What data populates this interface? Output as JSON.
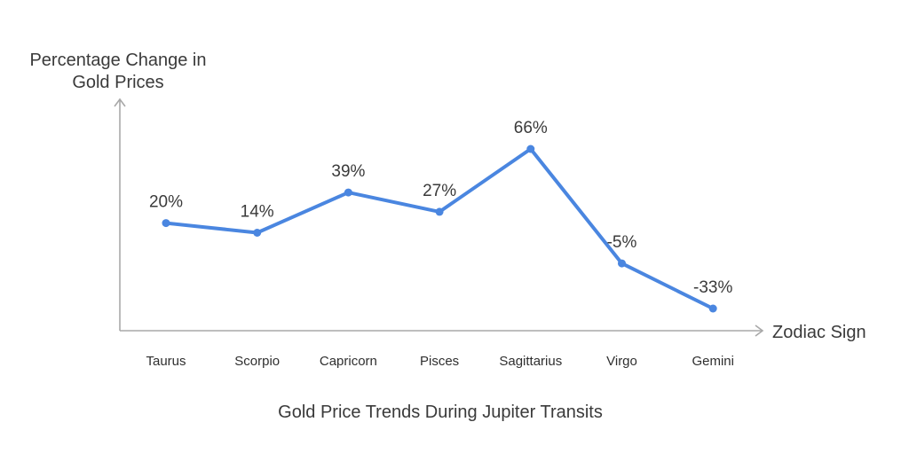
{
  "chart_data": {
    "type": "line",
    "ylabel": "Percentage Change in Gold Prices",
    "ylabel_lines": [
      "Percentage Change in",
      "Gold Prices"
    ],
    "xlabel": "Zodiac Sign",
    "caption": "Gold Price Trends During Jupiter Transits",
    "categories": [
      "Taurus",
      "Scorpio",
      "Capricorn",
      "Pisces",
      "Sagittarius",
      "Virgo",
      "Gemini"
    ],
    "series": [
      {
        "values": [
          20,
          14,
          39,
          27,
          66,
          -5,
          -33
        ],
        "data_labels": [
          "20%",
          "14%",
          "39%",
          "27%",
          "66%",
          "-5%",
          "-33%"
        ],
        "color": "#4A86E0"
      }
    ],
    "grid": false,
    "legend": "none"
  }
}
